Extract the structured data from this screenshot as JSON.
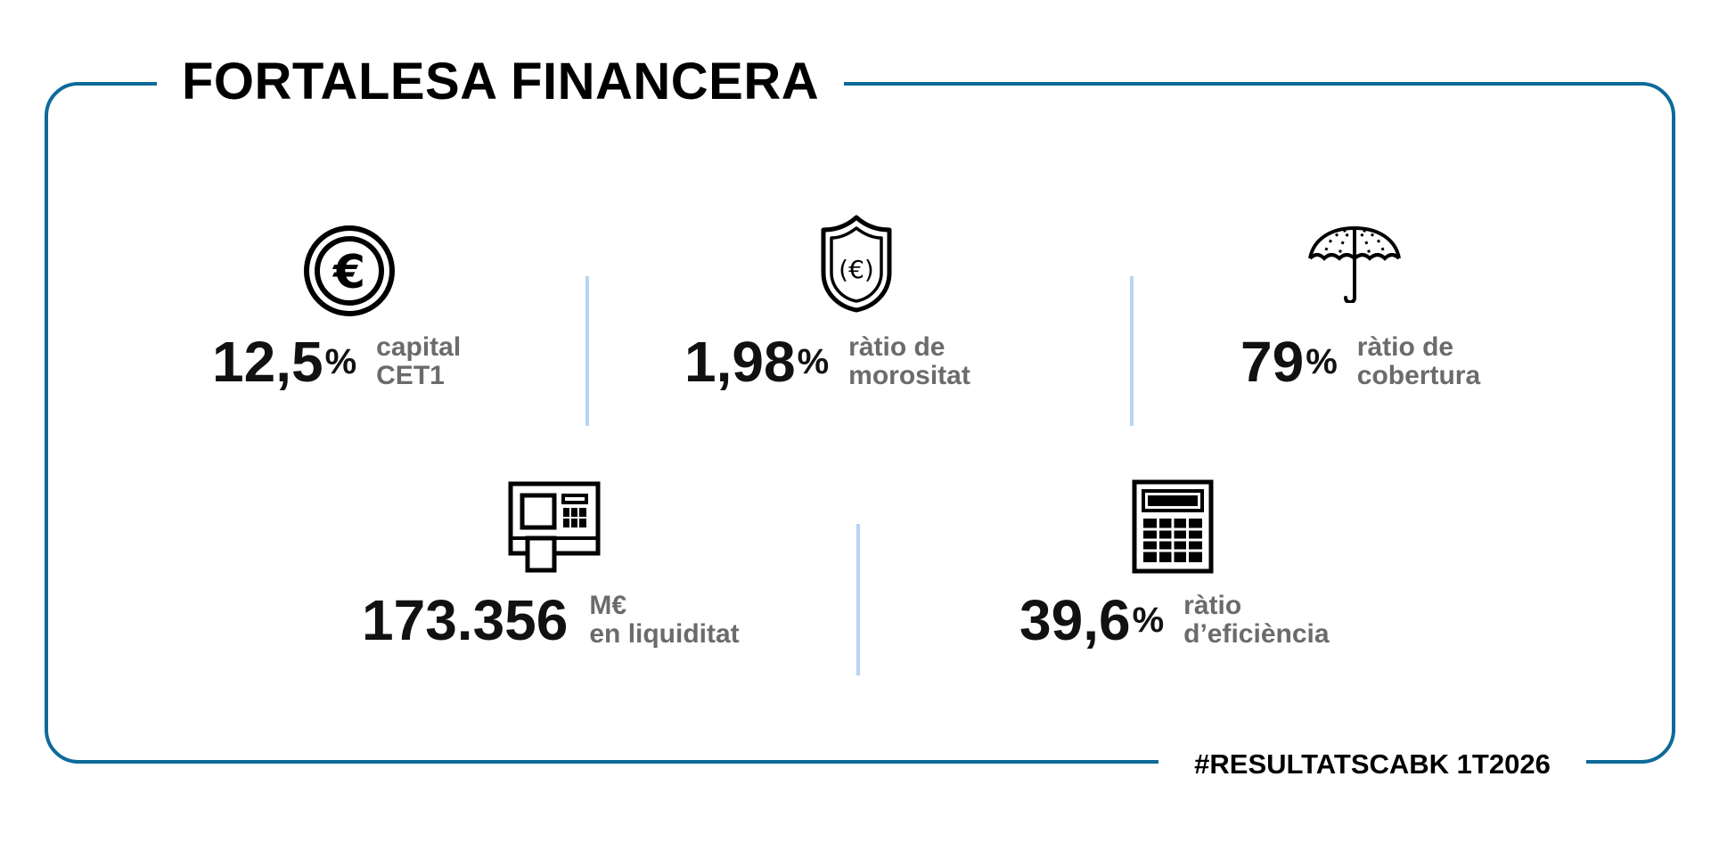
{
  "title": "FORTALESA FINANCERA",
  "hashtag": "#RESULTATSCABK 1T2026",
  "colors": {
    "frame": "#0e6a9a",
    "divider": "#b8d4f2",
    "label": "#6b6b6b",
    "value": "#111111"
  },
  "stats": [
    {
      "icon": "euro-coin-icon",
      "value": "12,5",
      "unit": "%",
      "label_line1": "capital",
      "label_line2": "CET1"
    },
    {
      "icon": "euro-shield-icon",
      "value": "1,98",
      "unit": "%",
      "label_line1": "ràtio de",
      "label_line2": "morositat"
    },
    {
      "icon": "umbrella-icon",
      "value": "79",
      "unit": "%",
      "label_line1": "ràtio de",
      "label_line2": "cobertura"
    },
    {
      "icon": "atm-icon",
      "value": "173.356",
      "unit": "",
      "label_line1": "M€",
      "label_line2": "en liquiditat"
    },
    {
      "icon": "calculator-icon",
      "value": "39,6",
      "unit": "%",
      "label_line1": "ràtio",
      "label_line2": "d’eficiència"
    }
  ]
}
